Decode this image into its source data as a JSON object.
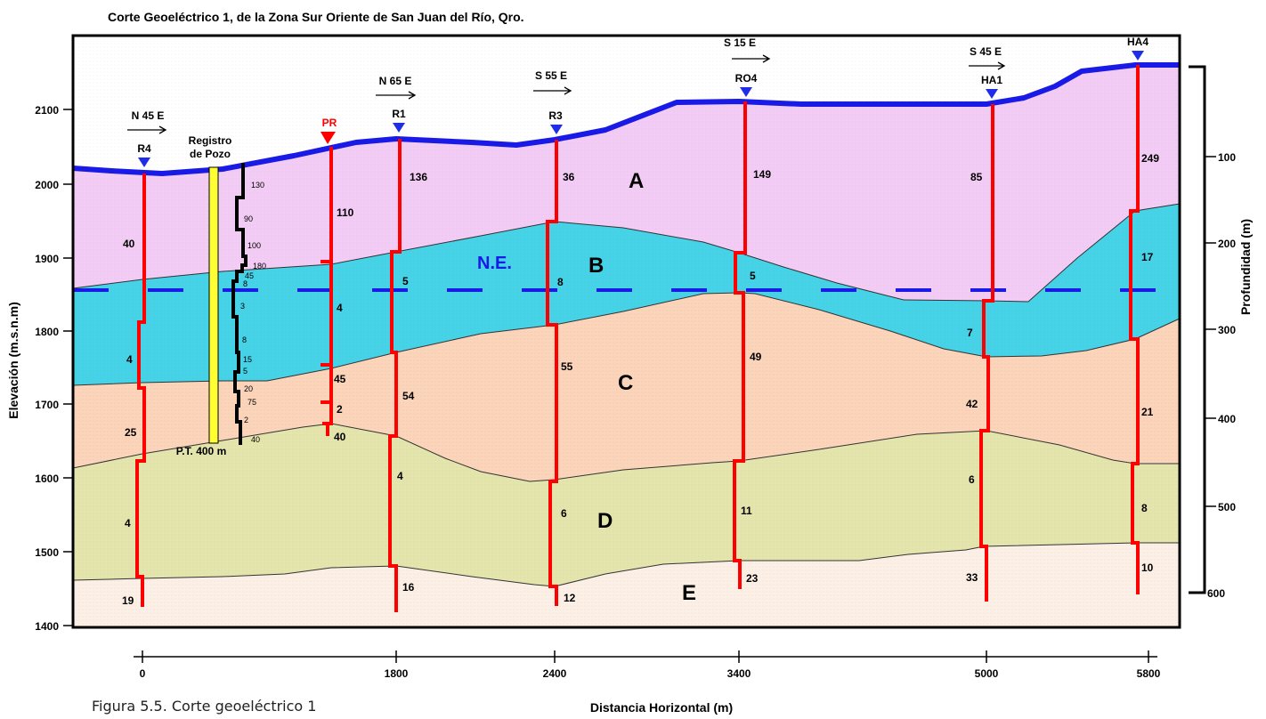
{
  "title": "Corte Geoeléctrico 1, de la Zona Sur Oriente de San Juan del Río, Qro.",
  "caption": "Figura 5.5. Corte geoeléctrico 1",
  "axes": {
    "ylabel_left": "Elevación (m.s.n.m)",
    "ylabel_right": "Profundidad (m)",
    "xlabel": "Distancia Horizontal (m)",
    "elev_ticks": [
      "2100",
      "2000",
      "1900",
      "1800",
      "1700",
      "1600",
      "1500",
      "1400"
    ],
    "depth_ticks": [
      "100",
      "200",
      "300",
      "400",
      "500",
      "600"
    ],
    "dist_ticks": [
      "0",
      "1800",
      "2400",
      "3400",
      "5000",
      "5800"
    ]
  },
  "layers": [
    {
      "label": "A",
      "color": "#f3ccf5"
    },
    {
      "label": "B",
      "color": "#46d3e8"
    },
    {
      "label": "C",
      "color": "#fbd4ba"
    },
    {
      "label": "D",
      "color": "#e4e4ad"
    },
    {
      "label": "E",
      "color": "#fcefe6"
    }
  ],
  "water_table": "N.E.",
  "directions": [
    "N 45 E",
    "N 65 E",
    "S 55 E",
    "S 15 E",
    "S 45 E"
  ],
  "soundings": [
    {
      "name": "R4",
      "color": "#1f2ee6",
      "values": [
        "40",
        "4",
        "25",
        "4",
        "19"
      ]
    },
    {
      "name": "PR",
      "color": "#ff0000",
      "values": [
        "110",
        "4",
        "45",
        "2",
        "40"
      ]
    },
    {
      "name": "R1",
      "color": "#1f2ee6",
      "values": [
        "136",
        "5",
        "54",
        "4",
        "16"
      ]
    },
    {
      "name": "R3",
      "color": "#1f2ee6",
      "values": [
        "36",
        "8",
        "55",
        "6",
        "12"
      ]
    },
    {
      "name": "RO4",
      "color": "#1f2ee6",
      "values": [
        "149",
        "5",
        "49",
        "11",
        "23"
      ]
    },
    {
      "name": "HA1",
      "color": "#1f2ee6",
      "values": [
        "85",
        "7",
        "42",
        "6",
        "33"
      ]
    },
    {
      "name": "HA4",
      "color": "#1f2ee6",
      "values": [
        "249",
        "17",
        "21",
        "8",
        "10"
      ]
    }
  ],
  "well": {
    "label_line1": "Registro",
    "label_line2": "de Pozo",
    "depth_label": "P.T. 400 m",
    "log_values": [
      "130",
      "90",
      "100",
      "180",
      "45",
      "8",
      "3",
      "8",
      "15",
      "5",
      "20",
      "75",
      "2",
      "40"
    ]
  },
  "colors": {
    "surface": "#1a1ae6",
    "sounding_line": "#ff0000",
    "water_table": "#1a1ae6",
    "well_casing": "#ffff33"
  }
}
